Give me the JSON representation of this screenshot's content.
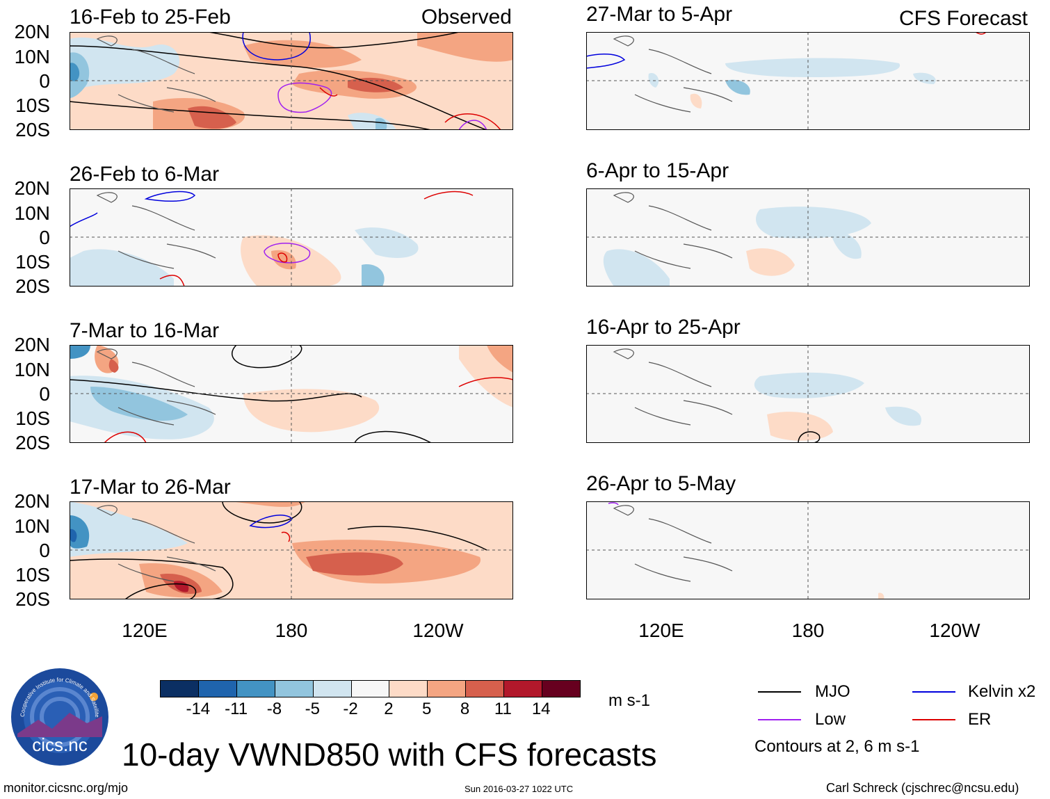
{
  "observed_label": "Observed",
  "forecast_label": "CFS Forecast",
  "observed_panels": [
    {
      "period": "16-Feb to 25-Feb"
    },
    {
      "period": "26-Feb to 6-Mar"
    },
    {
      "period": "7-Mar to 16-Mar"
    },
    {
      "period": "17-Mar to 26-Mar"
    }
  ],
  "forecast_panels": [
    {
      "period": "27-Mar to 5-Apr"
    },
    {
      "period": "6-Apr to 15-Apr"
    },
    {
      "period": "16-Apr to 25-Apr"
    },
    {
      "period": "26-Apr to 5-May"
    }
  ],
  "lat_labels": [
    "20N",
    "10N",
    "0",
    "10S",
    "20S"
  ],
  "lon_labels": [
    "120E",
    "180",
    "120W"
  ],
  "colorbar": {
    "levels": [
      "-14",
      "-11",
      "-8",
      "-5",
      "-2",
      "2",
      "5",
      "8",
      "11",
      "14"
    ],
    "colors": [
      "#0b2f63",
      "#1f64ad",
      "#4393c3",
      "#92c5de",
      "#d1e5f0",
      "#f7f7f7",
      "#fddbc7",
      "#f4a582",
      "#d6604d",
      "#b2182b",
      "#67001f"
    ],
    "units": "m s-1"
  },
  "legend": {
    "mjo": "MJO",
    "kelvin": "Kelvin x2",
    "low": "Low",
    "er": "ER",
    "colors": {
      "mjo": "#000000",
      "kelvin": "#0000dd",
      "low": "#a020f0",
      "er": "#dd0000"
    },
    "contours_note": "Contours at 2, 6 m s-1"
  },
  "logo_text": "cics.nc",
  "logo_ring_text": "Cooperative Institute for Climate and Satellites",
  "main_title": "10-day VWND850 with CFS forecasts",
  "footer": {
    "left": "monitor.cicsnc.org/mjo",
    "center": "Sun 2016-03-27 1022 UTC",
    "right": "Carl Schreck (cjschrec@ncsu.edu)"
  }
}
